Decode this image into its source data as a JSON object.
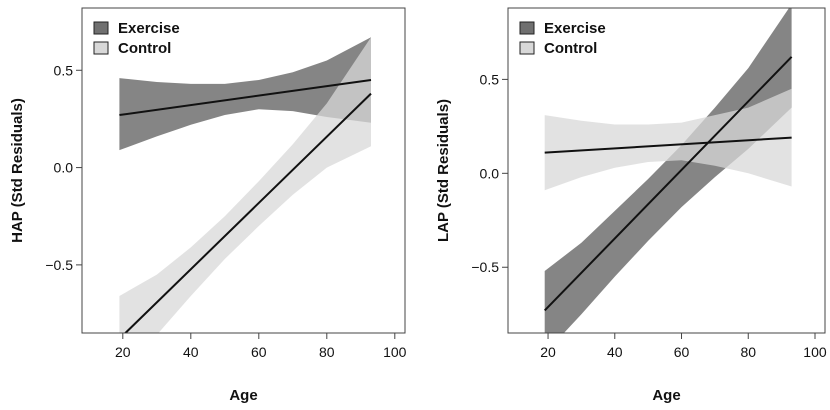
{
  "chart_data": [
    {
      "type": "line",
      "title": "",
      "xlabel": "Age",
      "ylabel": "HAP (Std Residuals)",
      "xlim": [
        8,
        103
      ],
      "ylim": [
        -0.85,
        0.82
      ],
      "xticks": [
        20,
        40,
        60,
        80,
        100
      ],
      "yticks": [
        -0.5,
        0.0,
        0.5
      ],
      "ytick_labels": [
        "−0.5",
        "0.0",
        "0.5"
      ],
      "grid": false,
      "legend": "top-left",
      "series": [
        {
          "name": "Exercise",
          "color": "#707070",
          "band_opacity": 0.85,
          "x": [
            19,
            93
          ],
          "y": [
            0.27,
            0.45
          ],
          "band_x": [
            19,
            30,
            40,
            50,
            60,
            70,
            80,
            93
          ],
          "band_lower": [
            0.09,
            0.16,
            0.22,
            0.27,
            0.3,
            0.29,
            0.26,
            0.23
          ],
          "band_upper": [
            0.46,
            0.44,
            0.43,
            0.43,
            0.45,
            0.49,
            0.55,
            0.67
          ]
        },
        {
          "name": "Control",
          "color": "#d8d8d8",
          "band_opacity": 0.75,
          "x": [
            19,
            93
          ],
          "y": [
            -0.88,
            0.38
          ],
          "band_x": [
            19,
            30,
            40,
            50,
            60,
            70,
            80,
            93
          ],
          "band_lower": [
            -1.12,
            -0.86,
            -0.66,
            -0.47,
            -0.3,
            -0.14,
            0.0,
            0.11
          ],
          "band_upper": [
            -0.66,
            -0.55,
            -0.41,
            -0.25,
            -0.07,
            0.12,
            0.33,
            0.67
          ]
        }
      ]
    },
    {
      "type": "line",
      "title": "",
      "xlabel": "Age",
      "ylabel": "LAP (Std Residuals)",
      "xlim": [
        8,
        103
      ],
      "ylim": [
        -0.85,
        0.88
      ],
      "xticks": [
        20,
        40,
        60,
        80,
        100
      ],
      "yticks": [
        -0.5,
        0.0,
        0.5
      ],
      "ytick_labels": [
        "−0.5",
        "0.0",
        "0.5"
      ],
      "grid": false,
      "legend": "top-left",
      "series": [
        {
          "name": "Exercise",
          "color": "#707070",
          "band_opacity": 0.85,
          "x": [
            19,
            93
          ],
          "y": [
            -0.73,
            0.62
          ],
          "band_x": [
            19,
            30,
            40,
            50,
            60,
            70,
            80,
            93
          ],
          "band_lower": [
            -0.96,
            -0.75,
            -0.55,
            -0.36,
            -0.18,
            -0.02,
            0.13,
            0.35
          ],
          "band_upper": [
            -0.52,
            -0.37,
            -0.2,
            -0.03,
            0.15,
            0.35,
            0.56,
            0.9
          ]
        },
        {
          "name": "Control",
          "color": "#d8d8d8",
          "band_opacity": 0.75,
          "x": [
            19,
            93
          ],
          "y": [
            0.11,
            0.19
          ],
          "band_x": [
            19,
            30,
            40,
            50,
            60,
            70,
            80,
            93
          ],
          "band_lower": [
            -0.09,
            -0.02,
            0.03,
            0.06,
            0.07,
            0.04,
            0.0,
            -0.07
          ],
          "band_upper": [
            0.31,
            0.28,
            0.26,
            0.26,
            0.27,
            0.31,
            0.35,
            0.45
          ]
        }
      ]
    }
  ]
}
